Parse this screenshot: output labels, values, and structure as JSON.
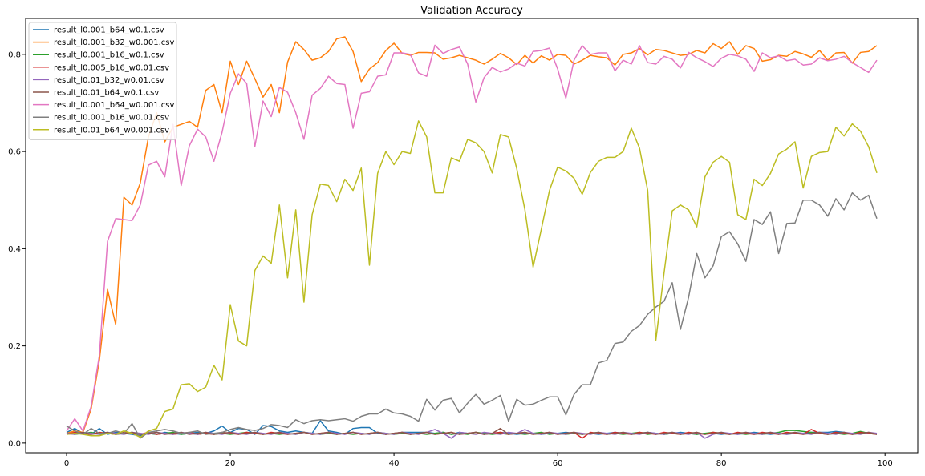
{
  "chart_data": {
    "type": "line",
    "title": "Validation Accuracy",
    "xlabel": "",
    "ylabel": "",
    "xlim": [
      -5,
      104
    ],
    "ylim": [
      -0.02,
      0.874
    ],
    "xticks": [
      0,
      20,
      40,
      60,
      80,
      100
    ],
    "yticks": [
      0.0,
      0.2,
      0.4,
      0.6,
      0.8
    ],
    "xtick_labels": [
      "0",
      "20",
      "40",
      "60",
      "80",
      "100"
    ],
    "ytick_labels": [
      "0.0",
      "0.2",
      "0.4",
      "0.6",
      "0.8"
    ],
    "grid": false,
    "legend_position": "top-left",
    "series": [
      {
        "name": "result_l0.001_b64_w0.1.csv",
        "color": "#1f77b4",
        "values": [
          0.022,
          0.03,
          0.02,
          0.018,
          0.03,
          0.018,
          0.022,
          0.02,
          0.018,
          0.015,
          0.02,
          0.018,
          0.022,
          0.02,
          0.018,
          0.02,
          0.022,
          0.02,
          0.025,
          0.035,
          0.022,
          0.03,
          0.028,
          0.018,
          0.036,
          0.034,
          0.025,
          0.022,
          0.025,
          0.022,
          0.02,
          0.046,
          0.025,
          0.022,
          0.018,
          0.03,
          0.032,
          0.032,
          0.02,
          0.018,
          0.02,
          0.022,
          0.022,
          0.022,
          0.022,
          0.02,
          0.022,
          0.018,
          0.022,
          0.02,
          0.022,
          0.018,
          0.02,
          0.022,
          0.02,
          0.018,
          0.02,
          0.02,
          0.018,
          0.02,
          0.02,
          0.022,
          0.02,
          0.018,
          0.02,
          0.018,
          0.02,
          0.022,
          0.02,
          0.018,
          0.02,
          0.022,
          0.02,
          0.018,
          0.02,
          0.022,
          0.02,
          0.018,
          0.02,
          0.02,
          0.018,
          0.02,
          0.018,
          0.02,
          0.022,
          0.02,
          0.018,
          0.02,
          0.018,
          0.02,
          0.02,
          0.022,
          0.022,
          0.022,
          0.024,
          0.022,
          0.018,
          0.02,
          0.02,
          0.02
        ]
      },
      {
        "name": "result_l0.001_b32_w0.001.csv",
        "color": "#ff7f0e",
        "values": [
          0.02,
          0.025,
          0.022,
          0.07,
          0.17,
          0.316,
          0.244,
          0.506,
          0.49,
          0.535,
          0.63,
          0.68,
          0.62,
          0.65,
          0.656,
          0.662,
          0.65,
          0.726,
          0.738,
          0.68,
          0.786,
          0.738,
          0.786,
          0.75,
          0.712,
          0.738,
          0.68,
          0.784,
          0.826,
          0.81,
          0.788,
          0.793,
          0.806,
          0.832,
          0.836,
          0.806,
          0.744,
          0.77,
          0.783,
          0.808,
          0.823,
          0.802,
          0.798,
          0.804,
          0.804,
          0.803,
          0.79,
          0.793,
          0.798,
          0.793,
          0.788,
          0.78,
          0.79,
          0.802,
          0.793,
          0.779,
          0.798,
          0.782,
          0.797,
          0.788,
          0.8,
          0.798,
          0.78,
          0.788,
          0.798,
          0.795,
          0.793,
          0.778,
          0.8,
          0.803,
          0.812,
          0.799,
          0.81,
          0.808,
          0.803,
          0.798,
          0.8,
          0.808,
          0.803,
          0.822,
          0.812,
          0.826,
          0.8,
          0.818,
          0.812,
          0.786,
          0.789,
          0.798,
          0.796,
          0.806,
          0.801,
          0.794,
          0.808,
          0.788,
          0.803,
          0.804,
          0.782,
          0.804,
          0.806,
          0.818
        ]
      },
      {
        "name": "result_l0.001_b16_w0.1.csv",
        "color": "#2ca02c",
        "values": [
          0.02,
          0.018,
          0.02,
          0.022,
          0.018,
          0.02,
          0.018,
          0.02,
          0.022,
          0.018,
          0.02,
          0.018,
          0.02,
          0.022,
          0.018,
          0.02,
          0.018,
          0.02,
          0.018,
          0.02,
          0.018,
          0.02,
          0.022,
          0.02,
          0.018,
          0.02,
          0.018,
          0.02,
          0.018,
          0.022,
          0.02,
          0.018,
          0.02,
          0.018,
          0.02,
          0.018,
          0.02,
          0.018,
          0.022,
          0.02,
          0.018,
          0.02,
          0.018,
          0.02,
          0.018,
          0.02,
          0.022,
          0.018,
          0.02,
          0.018,
          0.022,
          0.02,
          0.018,
          0.02,
          0.018,
          0.02,
          0.018,
          0.02,
          0.022,
          0.018,
          0.02,
          0.018,
          0.02,
          0.018,
          0.02,
          0.022,
          0.018,
          0.02,
          0.018,
          0.02,
          0.022,
          0.018,
          0.02,
          0.018,
          0.02,
          0.018,
          0.02,
          0.018,
          0.02,
          0.022,
          0.02,
          0.018,
          0.02,
          0.018,
          0.02,
          0.018,
          0.02,
          0.022,
          0.026,
          0.026,
          0.024,
          0.022,
          0.02,
          0.018,
          0.02,
          0.018,
          0.02,
          0.024,
          0.02,
          0.018
        ]
      },
      {
        "name": "result_l0.005_b16_w0.01.csv",
        "color": "#d62728",
        "values": [
          0.018,
          0.022,
          0.02,
          0.018,
          0.022,
          0.02,
          0.018,
          0.022,
          0.02,
          0.018,
          0.022,
          0.018,
          0.02,
          0.018,
          0.02,
          0.022,
          0.018,
          0.02,
          0.018,
          0.022,
          0.02,
          0.018,
          0.022,
          0.02,
          0.018,
          0.022,
          0.02,
          0.018,
          0.02,
          0.022,
          0.018,
          0.02,
          0.022,
          0.018,
          0.02,
          0.022,
          0.018,
          0.02,
          0.022,
          0.018,
          0.02,
          0.022,
          0.018,
          0.02,
          0.022,
          0.018,
          0.02,
          0.022,
          0.018,
          0.02,
          0.022,
          0.018,
          0.02,
          0.022,
          0.018,
          0.02,
          0.022,
          0.018,
          0.02,
          0.022,
          0.018,
          0.02,
          0.022,
          0.01,
          0.022,
          0.02,
          0.018,
          0.022,
          0.02,
          0.018,
          0.022,
          0.02,
          0.018,
          0.022,
          0.02,
          0.018,
          0.022,
          0.02,
          0.018,
          0.022,
          0.02,
          0.018,
          0.022,
          0.02,
          0.018,
          0.022,
          0.02,
          0.018,
          0.022,
          0.02,
          0.018,
          0.028,
          0.02,
          0.018,
          0.022,
          0.02,
          0.018,
          0.022,
          0.02,
          0.018
        ]
      },
      {
        "name": "result_l0.01_b32_w0.01.csv",
        "color": "#9467bd",
        "values": [
          0.02,
          0.018,
          0.022,
          0.02,
          0.018,
          0.022,
          0.02,
          0.018,
          0.022,
          0.02,
          0.018,
          0.022,
          0.02,
          0.018,
          0.022,
          0.02,
          0.018,
          0.022,
          0.02,
          0.018,
          0.022,
          0.02,
          0.018,
          0.022,
          0.02,
          0.018,
          0.022,
          0.02,
          0.018,
          0.022,
          0.02,
          0.018,
          0.022,
          0.02,
          0.018,
          0.022,
          0.02,
          0.018,
          0.022,
          0.02,
          0.018,
          0.022,
          0.02,
          0.018,
          0.022,
          0.028,
          0.02,
          0.01,
          0.022,
          0.02,
          0.018,
          0.022,
          0.02,
          0.018,
          0.022,
          0.02,
          0.028,
          0.02,
          0.018,
          0.022,
          0.02,
          0.018,
          0.022,
          0.02,
          0.018,
          0.022,
          0.02,
          0.018,
          0.022,
          0.02,
          0.018,
          0.022,
          0.02,
          0.018,
          0.022,
          0.02,
          0.018,
          0.022,
          0.01,
          0.018,
          0.022,
          0.02,
          0.018,
          0.022,
          0.02,
          0.018,
          0.022,
          0.02,
          0.018,
          0.022,
          0.02,
          0.018,
          0.022,
          0.02,
          0.018,
          0.022,
          0.02,
          0.018,
          0.022,
          0.02
        ]
      },
      {
        "name": "result_l0.01_b64_w0.1.csv",
        "color": "#8c564b",
        "values": [
          0.018,
          0.02,
          0.022,
          0.018,
          0.02,
          0.022,
          0.018,
          0.02,
          0.022,
          0.018,
          0.02,
          0.022,
          0.018,
          0.02,
          0.022,
          0.018,
          0.02,
          0.022,
          0.018,
          0.02,
          0.022,
          0.018,
          0.02,
          0.022,
          0.018,
          0.02,
          0.022,
          0.018,
          0.02,
          0.022,
          0.018,
          0.02,
          0.022,
          0.018,
          0.02,
          0.022,
          0.018,
          0.02,
          0.022,
          0.018,
          0.02,
          0.022,
          0.018,
          0.02,
          0.022,
          0.018,
          0.02,
          0.022,
          0.018,
          0.02,
          0.022,
          0.018,
          0.02,
          0.03,
          0.018,
          0.02,
          0.022,
          0.018,
          0.02,
          0.022,
          0.018,
          0.02,
          0.022,
          0.018,
          0.02,
          0.022,
          0.018,
          0.02,
          0.022,
          0.018,
          0.02,
          0.022,
          0.018,
          0.02,
          0.022,
          0.018,
          0.02,
          0.022,
          0.018,
          0.02,
          0.022,
          0.018,
          0.02,
          0.022,
          0.018,
          0.02,
          0.022,
          0.018,
          0.02,
          0.022,
          0.018,
          0.02,
          0.022,
          0.018,
          0.02,
          0.022,
          0.018,
          0.02,
          0.022,
          0.018
        ]
      },
      {
        "name": "result_l0.001_b64_w0.001.csv",
        "color": "#e377c2",
        "values": [
          0.025,
          0.05,
          0.025,
          0.075,
          0.18,
          0.415,
          0.462,
          0.46,
          0.458,
          0.49,
          0.572,
          0.58,
          0.548,
          0.656,
          0.53,
          0.612,
          0.646,
          0.63,
          0.58,
          0.64,
          0.72,
          0.76,
          0.74,
          0.61,
          0.704,
          0.672,
          0.732,
          0.722,
          0.68,
          0.625,
          0.716,
          0.73,
          0.755,
          0.74,
          0.738,
          0.648,
          0.72,
          0.723,
          0.755,
          0.758,
          0.803,
          0.803,
          0.8,
          0.762,
          0.755,
          0.819,
          0.802,
          0.81,
          0.815,
          0.78,
          0.702,
          0.752,
          0.773,
          0.764,
          0.77,
          0.782,
          0.776,
          0.806,
          0.808,
          0.813,
          0.77,
          0.71,
          0.788,
          0.818,
          0.8,
          0.803,
          0.803,
          0.766,
          0.788,
          0.78,
          0.818,
          0.783,
          0.78,
          0.796,
          0.79,
          0.772,
          0.804,
          0.793,
          0.785,
          0.775,
          0.792,
          0.8,
          0.797,
          0.79,
          0.765,
          0.803,
          0.793,
          0.797,
          0.787,
          0.79,
          0.778,
          0.78,
          0.793,
          0.787,
          0.79,
          0.796,
          0.783,
          0.773,
          0.763,
          0.788
        ]
      },
      {
        "name": "result_l0.001_b16_w0.01.csv",
        "color": "#7f7f7f",
        "values": [
          0.035,
          0.025,
          0.018,
          0.03,
          0.02,
          0.02,
          0.025,
          0.02,
          0.04,
          0.01,
          0.022,
          0.025,
          0.028,
          0.025,
          0.02,
          0.022,
          0.025,
          0.018,
          0.02,
          0.022,
          0.028,
          0.032,
          0.028,
          0.026,
          0.03,
          0.038,
          0.036,
          0.032,
          0.048,
          0.04,
          0.046,
          0.048,
          0.046,
          0.048,
          0.05,
          0.045,
          0.055,
          0.06,
          0.06,
          0.07,
          0.062,
          0.06,
          0.055,
          0.045,
          0.09,
          0.068,
          0.088,
          0.092,
          0.062,
          0.082,
          0.1,
          0.08,
          0.088,
          0.098,
          0.045,
          0.09,
          0.078,
          0.08,
          0.088,
          0.095,
          0.095,
          0.058,
          0.1,
          0.12,
          0.12,
          0.165,
          0.17,
          0.205,
          0.208,
          0.23,
          0.242,
          0.265,
          0.28,
          0.292,
          0.33,
          0.234,
          0.3,
          0.39,
          0.34,
          0.365,
          0.425,
          0.435,
          0.41,
          0.374,
          0.46,
          0.45,
          0.476,
          0.39,
          0.452,
          0.453,
          0.5,
          0.5,
          0.49,
          0.467,
          0.503,
          0.48,
          0.515,
          0.5,
          0.51,
          0.462
        ]
      },
      {
        "name": "result_l0.01_b64_w0.001.csv",
        "color": "#bcbd22",
        "values": [
          0.018,
          0.02,
          0.018,
          0.015,
          0.015,
          0.02,
          0.018,
          0.025,
          0.02,
          0.012,
          0.025,
          0.03,
          0.065,
          0.07,
          0.12,
          0.122,
          0.106,
          0.115,
          0.16,
          0.13,
          0.285,
          0.21,
          0.2,
          0.355,
          0.385,
          0.37,
          0.49,
          0.34,
          0.48,
          0.29,
          0.47,
          0.533,
          0.53,
          0.497,
          0.543,
          0.52,
          0.566,
          0.366,
          0.555,
          0.6,
          0.573,
          0.6,
          0.596,
          0.663,
          0.63,
          0.515,
          0.515,
          0.587,
          0.58,
          0.625,
          0.618,
          0.6,
          0.556,
          0.635,
          0.63,
          0.565,
          0.48,
          0.362,
          0.44,
          0.52,
          0.568,
          0.56,
          0.545,
          0.512,
          0.557,
          0.58,
          0.588,
          0.588,
          0.6,
          0.648,
          0.607,
          0.52,
          0.212,
          0.35,
          0.478,
          0.49,
          0.48,
          0.445,
          0.548,
          0.578,
          0.59,
          0.578,
          0.47,
          0.46,
          0.543,
          0.53,
          0.555,
          0.595,
          0.605,
          0.62,
          0.525,
          0.59,
          0.598,
          0.6,
          0.65,
          0.632,
          0.657,
          0.642,
          0.61,
          0.556
        ]
      }
    ]
  }
}
